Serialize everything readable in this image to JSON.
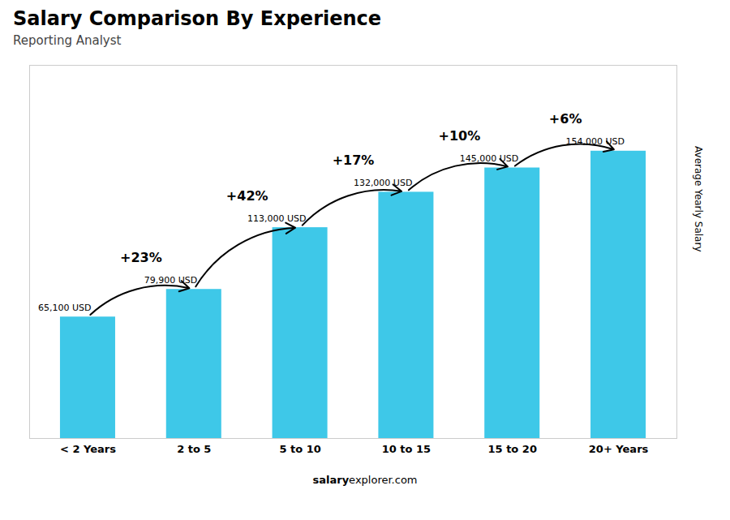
{
  "chart_data": {
    "type": "bar",
    "title": "Salary Comparison By Experience",
    "subtitle": "Reporting Analyst",
    "ylabel": "Average Yearly Salary",
    "categories": [
      "< 2 Years",
      "2 to 5",
      "5 to 10",
      "10 to 15",
      "15 to 20",
      "20+ Years"
    ],
    "values": [
      65100,
      79900,
      113000,
      132000,
      145000,
      154000
    ],
    "value_labels": [
      "65,100 USD",
      "79,900 USD",
      "113,000 USD",
      "132,000 USD",
      "145,000 USD",
      "154,000 USD"
    ],
    "data_labels": true,
    "annotations": [
      null,
      "+23%",
      "+42%",
      "+17%",
      "+10%",
      "+6%"
    ],
    "footer": [
      "salary",
      "explorer.com"
    ],
    "color": "#3ec8e8",
    "ylim": [
      0,
      200000
    ],
    "yticks": [],
    "grid": false,
    "tick_labels": "x"
  }
}
